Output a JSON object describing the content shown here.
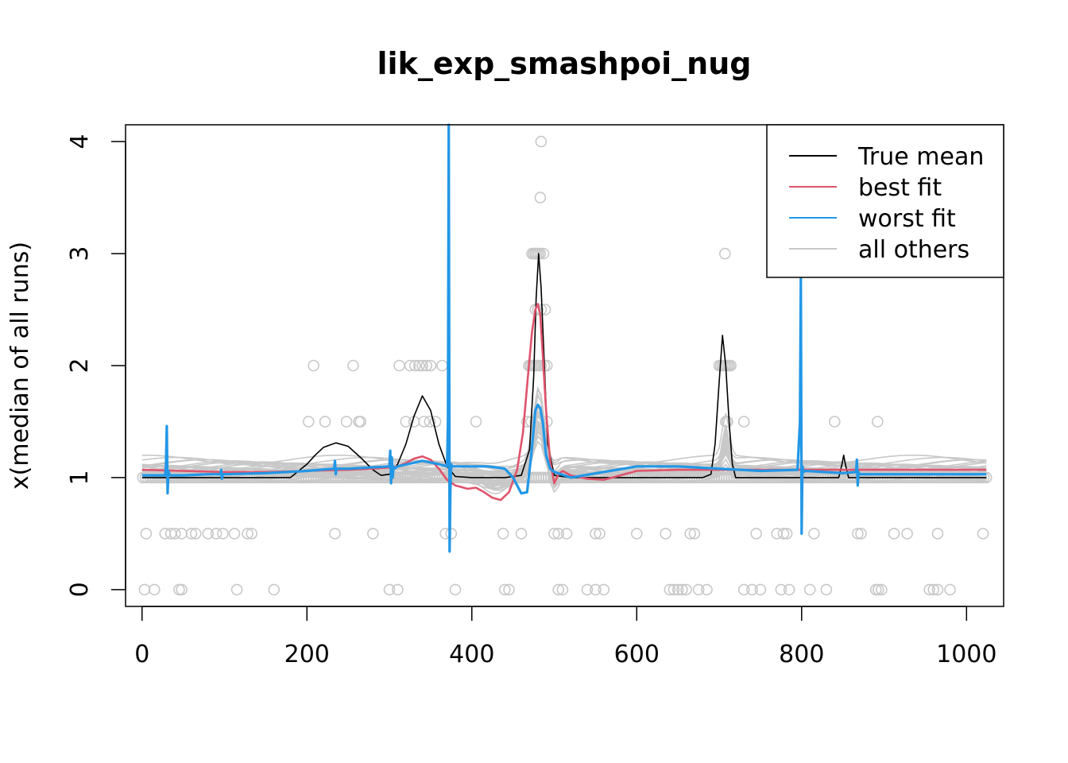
{
  "chart_data": {
    "type": "line",
    "title": "lik_exp_smashpoi_nug",
    "xlabel": "",
    "ylabel": "x(median of all runs)",
    "xlim": [
      -20,
      1045
    ],
    "ylim": [
      -0.15,
      4.15
    ],
    "x_ticks": [
      0,
      200,
      400,
      600,
      800,
      1000
    ],
    "x_tick_labels": [
      "0",
      "200",
      "400",
      "600",
      "800",
      "1000"
    ],
    "y_ticks": [
      0,
      1,
      2,
      3,
      4
    ],
    "y_tick_labels": [
      "0",
      "1",
      "2",
      "3",
      "4"
    ],
    "grid": false,
    "legend_position": "top-right",
    "colors": {
      "true_mean": "#000000",
      "best_fit": "#DF536B",
      "worst_fit": "#2297E6",
      "others": "#C8C8C8",
      "points": "#C8C8C8"
    },
    "legend": [
      {
        "key": "true_mean",
        "label": "True mean"
      },
      {
        "key": "best_fit",
        "label": "best fit"
      },
      {
        "key": "worst_fit",
        "label": "worst fit"
      },
      {
        "key": "others",
        "label": "all others"
      }
    ],
    "series": [
      {
        "name": "True mean",
        "key": "true_mean",
        "x": [
          0,
          180,
          200,
          210,
          220,
          235,
          250,
          265,
          280,
          290,
          300,
          310,
          320,
          330,
          340,
          350,
          360,
          370,
          380,
          400,
          440,
          460,
          470,
          475,
          478,
          481,
          484,
          488,
          492,
          500,
          520,
          600,
          680,
          690,
          695,
          700,
          704,
          708,
          712,
          716,
          720,
          800,
          845,
          849,
          851,
          853,
          857,
          870,
          1024
        ],
        "y": [
          1.0,
          1.0,
          1.12,
          1.2,
          1.27,
          1.31,
          1.28,
          1.18,
          1.07,
          1.02,
          1.03,
          1.12,
          1.3,
          1.55,
          1.73,
          1.6,
          1.3,
          1.1,
          1.01,
          1.0,
          1.0,
          1.02,
          1.25,
          1.9,
          2.6,
          3.0,
          2.7,
          2.0,
          1.3,
          1.02,
          1.0,
          1.0,
          1.0,
          1.03,
          1.3,
          1.85,
          2.27,
          2.0,
          1.5,
          1.12,
          1.0,
          1.0,
          1.0,
          1.12,
          1.2,
          1.12,
          1.0,
          1.0,
          1.0
        ]
      },
      {
        "name": "best fit",
        "key": "best_fit",
        "x": [
          0,
          50,
          100,
          150,
          200,
          250,
          280,
          300,
          310,
          320,
          330,
          340,
          350,
          360,
          370,
          380,
          395,
          405,
          415,
          425,
          435,
          445,
          455,
          462,
          468,
          473,
          477,
          480,
          483,
          486,
          490,
          495,
          500,
          505,
          510,
          520,
          540,
          560,
          580,
          600,
          650,
          700,
          800,
          900,
          1024
        ],
        "y": [
          1.07,
          1.06,
          1.05,
          1.05,
          1.06,
          1.07,
          1.08,
          1.09,
          1.1,
          1.13,
          1.17,
          1.19,
          1.16,
          1.08,
          0.98,
          0.93,
          0.9,
          0.91,
          0.87,
          0.82,
          0.8,
          0.87,
          1.07,
          1.4,
          1.9,
          2.3,
          2.5,
          2.55,
          2.45,
          2.1,
          1.6,
          1.15,
          0.95,
          1.03,
          1.06,
          1.02,
          0.99,
          0.98,
          1.02,
          1.06,
          1.07,
          1.07,
          1.07,
          1.07,
          1.07
        ]
      },
      {
        "name": "worst fit",
        "key": "worst_fit",
        "x": [
          0,
          28,
          29,
          30,
          31,
          32,
          33,
          35,
          50,
          80,
          95,
          96,
          97,
          98,
          100,
          150,
          200,
          233,
          234,
          235,
          236,
          250,
          300,
          301,
          302,
          303,
          304,
          305,
          306,
          310,
          340,
          360,
          370,
          371,
          372,
          373,
          374,
          375,
          376,
          380,
          395,
          420,
          440,
          450,
          460,
          467,
          472,
          477,
          480,
          483,
          486,
          490,
          495,
          500,
          520,
          600,
          650,
          700,
          750,
          795,
          798,
          799,
          800,
          801,
          802,
          805,
          850,
          866,
          867,
          868,
          869,
          870,
          875,
          900,
          1024
        ],
        "y": [
          1.02,
          1.02,
          1.1,
          1.46,
          0.86,
          1.06,
          1.03,
          1.02,
          1.02,
          1.03,
          1.03,
          1.07,
          0.99,
          1.03,
          1.03,
          1.04,
          1.06,
          1.08,
          1.15,
          1.03,
          1.08,
          1.08,
          1.1,
          1.24,
          0.95,
          1.18,
          1.0,
          1.1,
          1.08,
          1.1,
          1.15,
          1.12,
          1.1,
          1.5,
          4.15,
          0.34,
          0.9,
          1.12,
          1.1,
          1.1,
          1.1,
          1.1,
          1.08,
          1.0,
          0.86,
          0.87,
          1.2,
          1.6,
          1.65,
          1.62,
          1.5,
          1.2,
          1.08,
          1.05,
          1.0,
          1.1,
          1.1,
          1.08,
          1.06,
          1.07,
          1.5,
          2.8,
          0.5,
          1.1,
          1.05,
          1.06,
          1.04,
          1.05,
          1.16,
          0.93,
          1.05,
          1.03,
          1.03,
          1.03,
          1.03
        ]
      }
    ],
    "others_summary": "about 30 grey fitted curves near 1.0 (0.8 to 1.75), peaking near x = 480 and x = 708",
    "others_levels": [
      1.0,
      1.0,
      1.01,
      1.02,
      1.03,
      1.04,
      1.05,
      1.06,
      1.07,
      1.08,
      1.09,
      1.1,
      1.12,
      1.14,
      1.16
    ],
    "points": {
      "description": "observed counts at x = 1..1024; most points equal 1",
      "y0_x": [
        3,
        15,
        45,
        48,
        115,
        160,
        300,
        310,
        380,
        440,
        445,
        505,
        510,
        540,
        550,
        560,
        640,
        645,
        650,
        655,
        660,
        675,
        685,
        730,
        740,
        750,
        775,
        785,
        810,
        830,
        890,
        893,
        897,
        955,
        960,
        965,
        980
      ],
      "y05_x": [
        5,
        28,
        35,
        40,
        48,
        60,
        65,
        80,
        90,
        98,
        112,
        128,
        133,
        234,
        280,
        368,
        375,
        438,
        460,
        500,
        505,
        515,
        550,
        555,
        600,
        635,
        665,
        670,
        745,
        770,
        778,
        782,
        815,
        868,
        872,
        912,
        928,
        965,
        1020
      ],
      "y1_x_range": [
        1,
        1024
      ],
      "y15_x": [
        202,
        222,
        248,
        263,
        265,
        320,
        330,
        342,
        349,
        356,
        405,
        467,
        472,
        477,
        484,
        491,
        708,
        710,
        730,
        840,
        892
      ],
      "y2_x": [
        208,
        256,
        312,
        325,
        331,
        336,
        340,
        345,
        350,
        364,
        469,
        471,
        473,
        475,
        477,
        479,
        481,
        484,
        488,
        491,
        700,
        702,
        704,
        706,
        708,
        710,
        712,
        714
      ],
      "y25_x": [
        477,
        480,
        484,
        489
      ],
      "y3_x": [
        473,
        475,
        477,
        479,
        481,
        483,
        487,
        707
      ],
      "y35_x": [
        483
      ],
      "y4_x": [
        484
      ]
    }
  }
}
